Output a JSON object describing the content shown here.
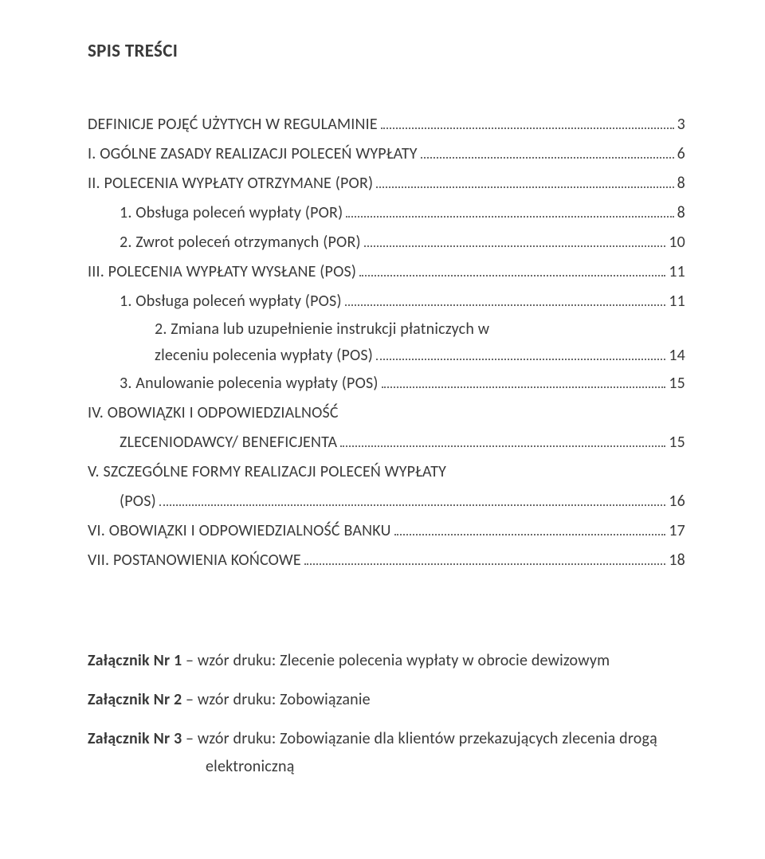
{
  "colors": {
    "text": "#3a3a3a",
    "leader": "#6a6a6a",
    "background": "#ffffff"
  },
  "fonts": {
    "family": "Calibri Light",
    "title_size_pt": 17,
    "body_size_pt": 15
  },
  "title": "SPIS TREŚCI",
  "toc": [
    {
      "level": 0,
      "label": "DEFINICJE POJĘĆ UŻYTYCH W REGULAMINIE",
      "page": "3"
    },
    {
      "level": 0,
      "label": "I. OGÓLNE ZASADY REALIZACJI POLECEŃ WYPŁATY",
      "page": "6"
    },
    {
      "level": 0,
      "label": "II. POLECENIA WYPŁATY OTRZYMANE (POR)",
      "page": "8"
    },
    {
      "level": 1,
      "label": "1. Obsługa poleceń wypłaty (POR)",
      "page": "8"
    },
    {
      "level": 1,
      "label": "2. Zwrot poleceń otrzymanych (POR)",
      "page": "10"
    },
    {
      "level": 0,
      "label": "III. POLECENIA WYPŁATY WYSŁANE (POS)",
      "page": "11"
    },
    {
      "level": 1,
      "label": "1. Obsługa poleceń wypłaty (POS)",
      "page": "11"
    },
    {
      "level": 1,
      "type": "multi",
      "line1": "2. Zmiana  lub  uzupełnienie  instrukcji  płatniczych  w",
      "line2": "zleceniu polecenia wypłaty (POS)",
      "page": "14"
    },
    {
      "level": 1,
      "label": "3. Anulowanie polecenia wypłaty (POS)",
      "page": "15"
    },
    {
      "level": 0,
      "label": "IV. OBOWIĄZKI I ODPOWIEDZIALNOŚĆ",
      "page": null
    },
    {
      "level": 1,
      "label": "ZLECENIODAWCY/ BENEFICJENTA",
      "page": "15",
      "continuation": true
    },
    {
      "level": 0,
      "label": "V. SZCZEGÓLNE FORMY REALIZACJI POLECEŃ WYPŁATY",
      "page": null
    },
    {
      "level": 1,
      "label": "(POS)",
      "page": "16",
      "continuation": true
    },
    {
      "level": 0,
      "label": "VI. OBOWIĄZKI I ODPOWIEDZIALNOŚĆ BANKU",
      "page": "17"
    },
    {
      "level": 0,
      "label": "VII. POSTANOWIENIA KOŃCOWE",
      "page": "18"
    }
  ],
  "attachments": [
    {
      "bold": "Załącznik Nr 1",
      "sep": " – ",
      "rest": "wzór druku: Zlecenie polecenia wypłaty w obrocie dewizowym"
    },
    {
      "bold": "Załącznik Nr 2",
      "sep": " – ",
      "rest": "wzór druku: Zobowiązanie"
    },
    {
      "bold": "Załącznik Nr 3",
      "sep": " – ",
      "rest_line1": "wzór  druku:  Zobowiązanie  dla  klientów  przekazujących  zlecenia  drogą",
      "rest_line2": "elektroniczną",
      "multiline": true
    }
  ]
}
